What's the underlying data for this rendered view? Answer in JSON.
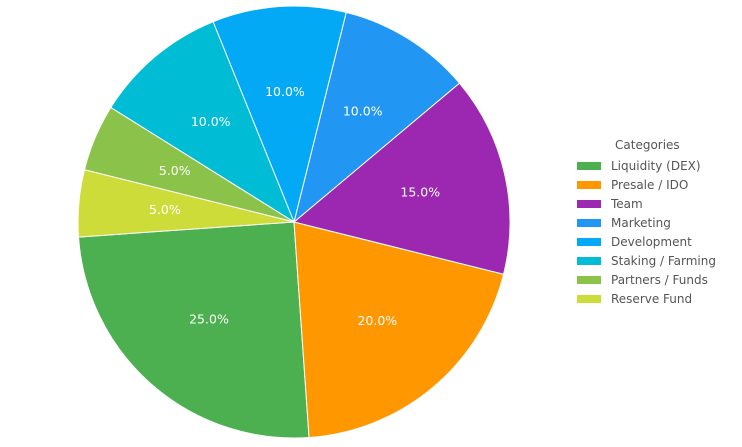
{
  "chart_data": {
    "type": "pie",
    "categories": [
      "Liquidity (DEX)",
      "Presale / IDO",
      "Team",
      "Marketing",
      "Development",
      "Staking / Farming",
      "Partners / Funds",
      "Reserve Fund"
    ],
    "values": [
      25,
      20,
      15,
      10,
      10,
      10,
      5,
      5
    ],
    "value_labels": [
      "25.0%",
      "20.0%",
      "15.0%",
      "10.0%",
      "10.0%",
      "10.0%",
      "5.0%",
      "5.0%"
    ],
    "colors": [
      "#4caf50",
      "#ff9800",
      "#9c27b0",
      "#2196f3",
      "#03a9f4",
      "#00bcd4",
      "#8bc34a",
      "#cddc39"
    ],
    "legend_title": "Categories",
    "legend_position": "right"
  }
}
